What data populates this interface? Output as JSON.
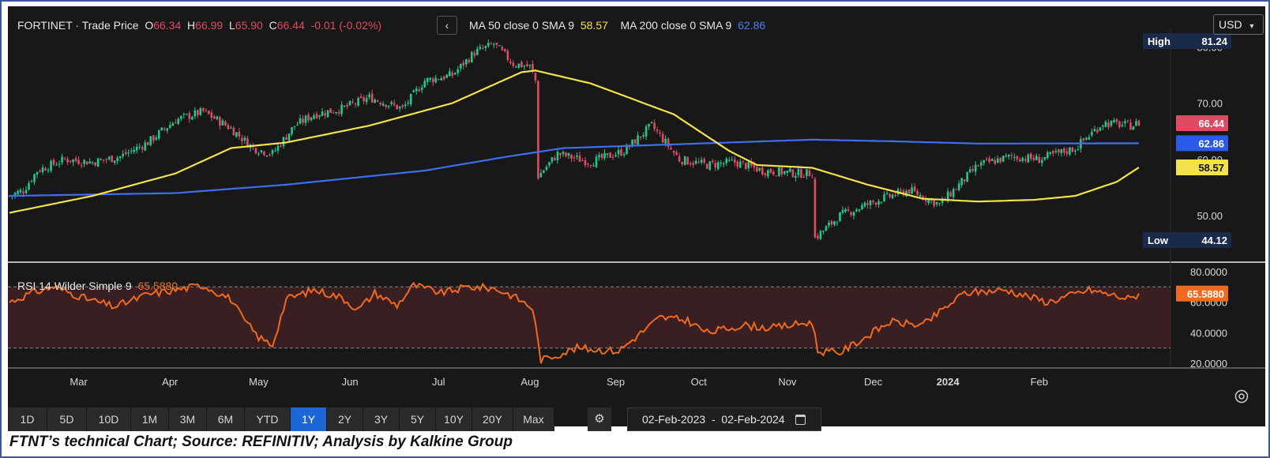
{
  "header": {
    "symbol": "FORTINET",
    "separator": "·",
    "price_type": "Trade Price",
    "o_label": "O",
    "o_value": "66.34",
    "h_label": "H",
    "h_value": "66.99",
    "l_label": "L",
    "l_value": "65.90",
    "c_label": "C",
    "c_value": "66.44",
    "change": "-0.01 (-0.02%)",
    "back_icon": "chevron-left-icon",
    "ma50_label": "MA 50 close 0 SMA 9",
    "ma50_value": "58.57",
    "ma200_label": "MA 200 close 0 SMA 9",
    "ma200_value": "62.86",
    "currency": "USD",
    "currency_icon": "chevron-down-icon"
  },
  "badges": {
    "high_label": "High",
    "high_value": "81.24",
    "low_label": "Low",
    "low_value": "44.12",
    "price": "66.44",
    "ma200": "62.86",
    "ma50": "58.57",
    "rsi": "65.5880"
  },
  "rsi_header": {
    "label": "RSI 14 Wilder Simple 9",
    "value": "65.5880"
  },
  "periods": [
    "1D",
    "5D",
    "10D",
    "1M",
    "3M",
    "6M",
    "YTD",
    "1Y",
    "2Y",
    "3Y",
    "5Y",
    "10Y",
    "20Y",
    "Max"
  ],
  "active_period": "1Y",
  "settings_icon": "gear-icon",
  "target_icon": "target-icon",
  "date_range": {
    "start": "02-Feb-2023",
    "dash": "-",
    "end": "02-Feb-2024",
    "icon": "calendar-icon"
  },
  "caption": "FTNT’s technical Chart; Source: REFINITIV; Analysis by Kalkine Group",
  "colors": {
    "background": "#181818",
    "up": "#22c98a",
    "down": "#e04b64",
    "ma50": "#f3e24a",
    "ma200": "#3f6ef0",
    "rsi": "#ef6a1e",
    "rsi_band": "#3a1f22"
  },
  "chart_data": [
    {
      "type": "candlestick",
      "title": "FORTINET · Trade Price",
      "x_ticks": [
        "Mar",
        "Apr",
        "May",
        "Jun",
        "Jul",
        "Aug",
        "Sep",
        "Oct",
        "Nov",
        "Dec",
        "2024",
        "Feb"
      ],
      "y_ticks": [
        "50.00",
        "60.00",
        "70.00",
        "80.00"
      ],
      "ylim": [
        42,
        83
      ],
      "price_waypoints": [
        [
          0,
          53.5
        ],
        [
          5,
          54.5
        ],
        [
          10,
          58.0
        ],
        [
          20,
          60.0
        ],
        [
          30,
          59.5
        ],
        [
          40,
          60.5
        ],
        [
          50,
          63.0
        ],
        [
          60,
          67.0
        ],
        [
          70,
          68.5
        ],
        [
          80,
          65.5
        ],
        [
          88,
          62.0
        ],
        [
          95,
          61.0
        ],
        [
          103,
          66.0
        ],
        [
          110,
          68.0
        ],
        [
          120,
          69.0
        ],
        [
          130,
          71.0
        ],
        [
          142,
          69.0
        ],
        [
          150,
          74.0
        ],
        [
          160,
          75.0
        ],
        [
          168,
          79.0
        ],
        [
          175,
          80.5
        ],
        [
          182,
          77.0
        ],
        [
          188,
          76.5
        ],
        [
          190,
          74.0
        ],
        [
          191,
          57.0
        ],
        [
          198,
          61.0
        ],
        [
          210,
          59.5
        ],
        [
          222,
          61.5
        ],
        [
          232,
          66.0
        ],
        [
          242,
          60.0
        ],
        [
          252,
          59.0
        ],
        [
          262,
          59.5
        ],
        [
          272,
          58.0
        ],
        [
          285,
          57.5
        ],
        [
          290,
          57.5
        ],
        [
          291,
          46.0
        ],
        [
          300,
          50.0
        ],
        [
          315,
          53.0
        ],
        [
          325,
          54.5
        ],
        [
          336,
          52.0
        ],
        [
          350,
          59.0
        ],
        [
          362,
          60.5
        ],
        [
          372,
          60.0
        ],
        [
          385,
          62.0
        ],
        [
          395,
          66.5
        ],
        [
          405,
          66.0
        ],
        [
          408,
          66.44
        ]
      ],
      "series": [
        {
          "name": "MA 50 close 0 SMA 9",
          "points": [
            [
              0,
              50.5
            ],
            [
              30,
              53.5
            ],
            [
              60,
              57.5
            ],
            [
              80,
              62.0
            ],
            [
              100,
              63.0
            ],
            [
              130,
              66.0
            ],
            [
              160,
              70.0
            ],
            [
              185,
              75.5
            ],
            [
              190,
              75.8
            ],
            [
              210,
              73.5
            ],
            [
              240,
              68.0
            ],
            [
              260,
              61.5
            ],
            [
              270,
              59.0
            ],
            [
              290,
              58.5
            ],
            [
              310,
              55.5
            ],
            [
              330,
              53.0
            ],
            [
              350,
              52.5
            ],
            [
              370,
              52.8
            ],
            [
              385,
              53.5
            ],
            [
              400,
              56.0
            ],
            [
              408,
              58.57
            ]
          ]
        },
        {
          "name": "MA 200 close 0 SMA 9",
          "points": [
            [
              0,
              53.5
            ],
            [
              60,
              54.0
            ],
            [
              100,
              55.5
            ],
            [
              150,
              58.0
            ],
            [
              180,
              60.5
            ],
            [
              200,
              62.0
            ],
            [
              230,
              62.5
            ],
            [
              260,
              63.0
            ],
            [
              290,
              63.5
            ],
            [
              320,
              63.2
            ],
            [
              350,
              62.8
            ],
            [
              408,
              62.86
            ]
          ]
        }
      ]
    },
    {
      "type": "line",
      "title": "RSI 14 Wilder Simple 9",
      "y_ticks": [
        "20.0000",
        "40.0000",
        "60.0000",
        "80.0000"
      ],
      "ylim": [
        18,
        83
      ],
      "reference_lines": [
        30,
        70
      ],
      "series": [
        {
          "name": "RSI 14 Wilder Simple 9",
          "waypoints": [
            [
              0,
              60
            ],
            [
              8,
              66
            ],
            [
              16,
              70
            ],
            [
              28,
              62
            ],
            [
              38,
              57
            ],
            [
              50,
              65
            ],
            [
              60,
              68
            ],
            [
              70,
              71
            ],
            [
              80,
              62
            ],
            [
              84,
              50
            ],
            [
              90,
              37
            ],
            [
              95,
              32
            ],
            [
              100,
              62
            ],
            [
              110,
              68
            ],
            [
              120,
              63
            ],
            [
              126,
              55
            ],
            [
              132,
              66
            ],
            [
              140,
              58
            ],
            [
              146,
              71
            ],
            [
              156,
              66
            ],
            [
              166,
              70
            ],
            [
              175,
              69
            ],
            [
              182,
              64
            ],
            [
              189,
              56
            ],
            [
              190,
              45
            ],
            [
              192,
              22
            ],
            [
              205,
              30
            ],
            [
              220,
              28
            ],
            [
              235,
              50
            ],
            [
              245,
              48
            ],
            [
              252,
              40
            ],
            [
              265,
              45
            ],
            [
              275,
              43
            ],
            [
              290,
              47
            ],
            [
              292,
              28
            ],
            [
              300,
              27
            ],
            [
              310,
              38
            ],
            [
              318,
              47
            ],
            [
              330,
              45
            ],
            [
              345,
              66
            ],
            [
              360,
              68
            ],
            [
              375,
              60
            ],
            [
              390,
              68
            ],
            [
              405,
              62
            ],
            [
              408,
              65.588
            ]
          ]
        }
      ]
    }
  ]
}
